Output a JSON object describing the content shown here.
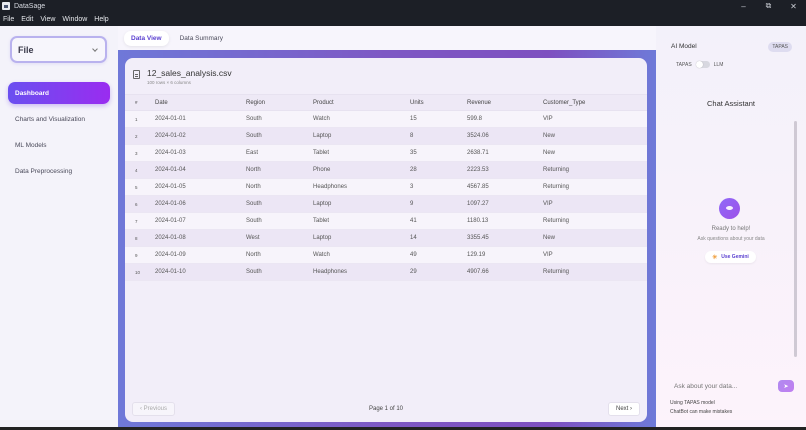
{
  "window": {
    "title": "DataSage",
    "controls": {
      "minimize": "–",
      "maximize": "⧉",
      "close": "✕"
    }
  },
  "menu": [
    "File",
    "Edit",
    "View",
    "Window",
    "Help"
  ],
  "sidebar": {
    "file_select": "File",
    "items": [
      {
        "label": "Dashboard",
        "active": true
      },
      {
        "label": "Charts and Visualization",
        "active": false
      },
      {
        "label": "ML Models",
        "active": false
      },
      {
        "label": "Data Preprocessing",
        "active": false
      }
    ]
  },
  "main": {
    "tabs": [
      {
        "label": "Data View",
        "active": true
      },
      {
        "label": "Data Summary",
        "active": false
      }
    ],
    "file": {
      "name": "12_sales_analysis.csv",
      "meta": "100 rows × 6 columns"
    },
    "table": {
      "columns": [
        "#",
        "Date",
        "Region",
        "Product",
        "Units",
        "Revenue",
        "Customer_Type"
      ],
      "rows": [
        [
          "1",
          "2024-01-01",
          "South",
          "Watch",
          "15",
          "599.8",
          "VIP"
        ],
        [
          "2",
          "2024-01-02",
          "South",
          "Laptop",
          "8",
          "3524.06",
          "New"
        ],
        [
          "3",
          "2024-01-03",
          "East",
          "Tablet",
          "35",
          "2638.71",
          "New"
        ],
        [
          "4",
          "2024-01-04",
          "North",
          "Phone",
          "28",
          "2223.53",
          "Returning"
        ],
        [
          "5",
          "2024-01-05",
          "North",
          "Headphones",
          "3",
          "4567.85",
          "Returning"
        ],
        [
          "6",
          "2024-01-06",
          "South",
          "Laptop",
          "9",
          "1097.27",
          "VIP"
        ],
        [
          "7",
          "2024-01-07",
          "South",
          "Tablet",
          "41",
          "1180.13",
          "Returning"
        ],
        [
          "8",
          "2024-01-08",
          "West",
          "Laptop",
          "14",
          "3355.45",
          "New"
        ],
        [
          "9",
          "2024-01-09",
          "North",
          "Watch",
          "49",
          "129.19",
          "VIP"
        ],
        [
          "10",
          "2024-01-10",
          "South",
          "Headphones",
          "29",
          "4907.66",
          "Returning"
        ]
      ]
    },
    "pager": {
      "prev": "‹  Previous",
      "next": "Next  ›",
      "label": "Page 1 of 10"
    }
  },
  "right": {
    "ai_model_label": "AI Model",
    "model_badge": "TAPAS",
    "toggle_left": "TAPAS",
    "toggle_right": "LLM",
    "chat_title": "Chat Assistant",
    "ready_title": "Ready to help!",
    "ready_sub": "Ask questions about your data",
    "gemini_icon": "✳",
    "gemini_label": "Use Gemini",
    "input_placeholder": "Ask about your data...",
    "send_icon": "➤",
    "footnote1": "Using TAPAS model",
    "footnote2": "ChatBot can make mistakes"
  },
  "colors": {
    "accent": "#6a4ff0",
    "accent2": "#9a2cf0",
    "titlebar": "#1c1f26"
  }
}
